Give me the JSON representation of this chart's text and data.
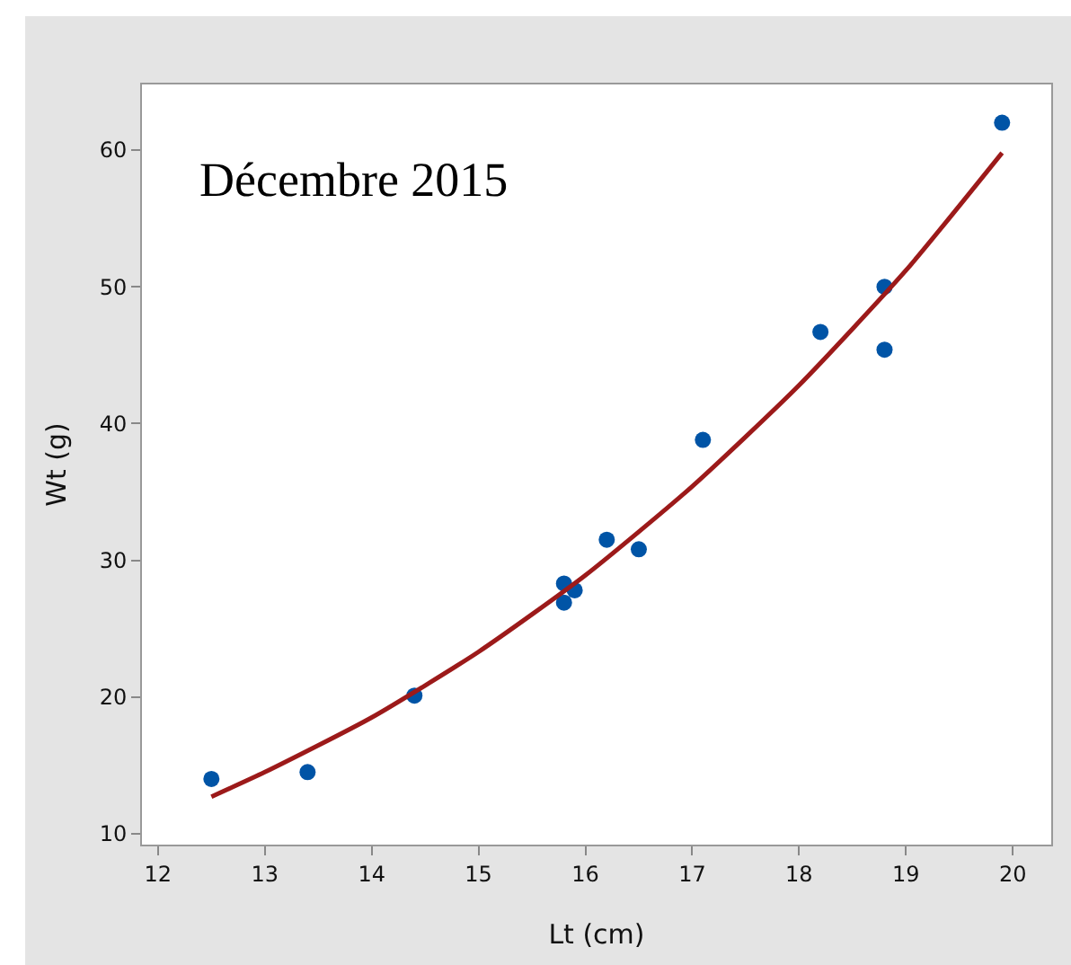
{
  "chart_data": {
    "type": "scatter",
    "xlabel": "Lt (cm)",
    "ylabel": "Wt (g)",
    "annotations": [
      "Décembre 2015"
    ],
    "xlim": [
      11.85,
      20.36
    ],
    "xticks": [
      12,
      13,
      14,
      15,
      16,
      17,
      18,
      19,
      20
    ],
    "ylim": [
      9.2,
      64.8
    ],
    "yticks": [
      10,
      20,
      30,
      40,
      50,
      60
    ],
    "grid": false,
    "series": [
      {
        "marker": "circle",
        "color": "#0054a6",
        "x": [
          12.5,
          13.4,
          14.4,
          15.8,
          15.8,
          15.9,
          16.2,
          16.5,
          17.1,
          18.2,
          18.8,
          18.8,
          19.9
        ],
        "values": [
          14,
          14.5,
          20.1,
          28.3,
          26.9,
          27.8,
          31.5,
          30.8,
          38.8,
          46.7,
          50,
          45.4,
          62
        ]
      },
      {
        "type": "line",
        "color": "#9c1a1a",
        "line_style": "solid",
        "x": [
          12.5,
          13,
          14,
          15,
          16,
          17,
          18,
          19,
          19.9
        ],
        "values": [
          12.7,
          14.5,
          18.5,
          23.3,
          28.9,
          35.4,
          42.8,
          51.2,
          59.8
        ]
      }
    ]
  }
}
